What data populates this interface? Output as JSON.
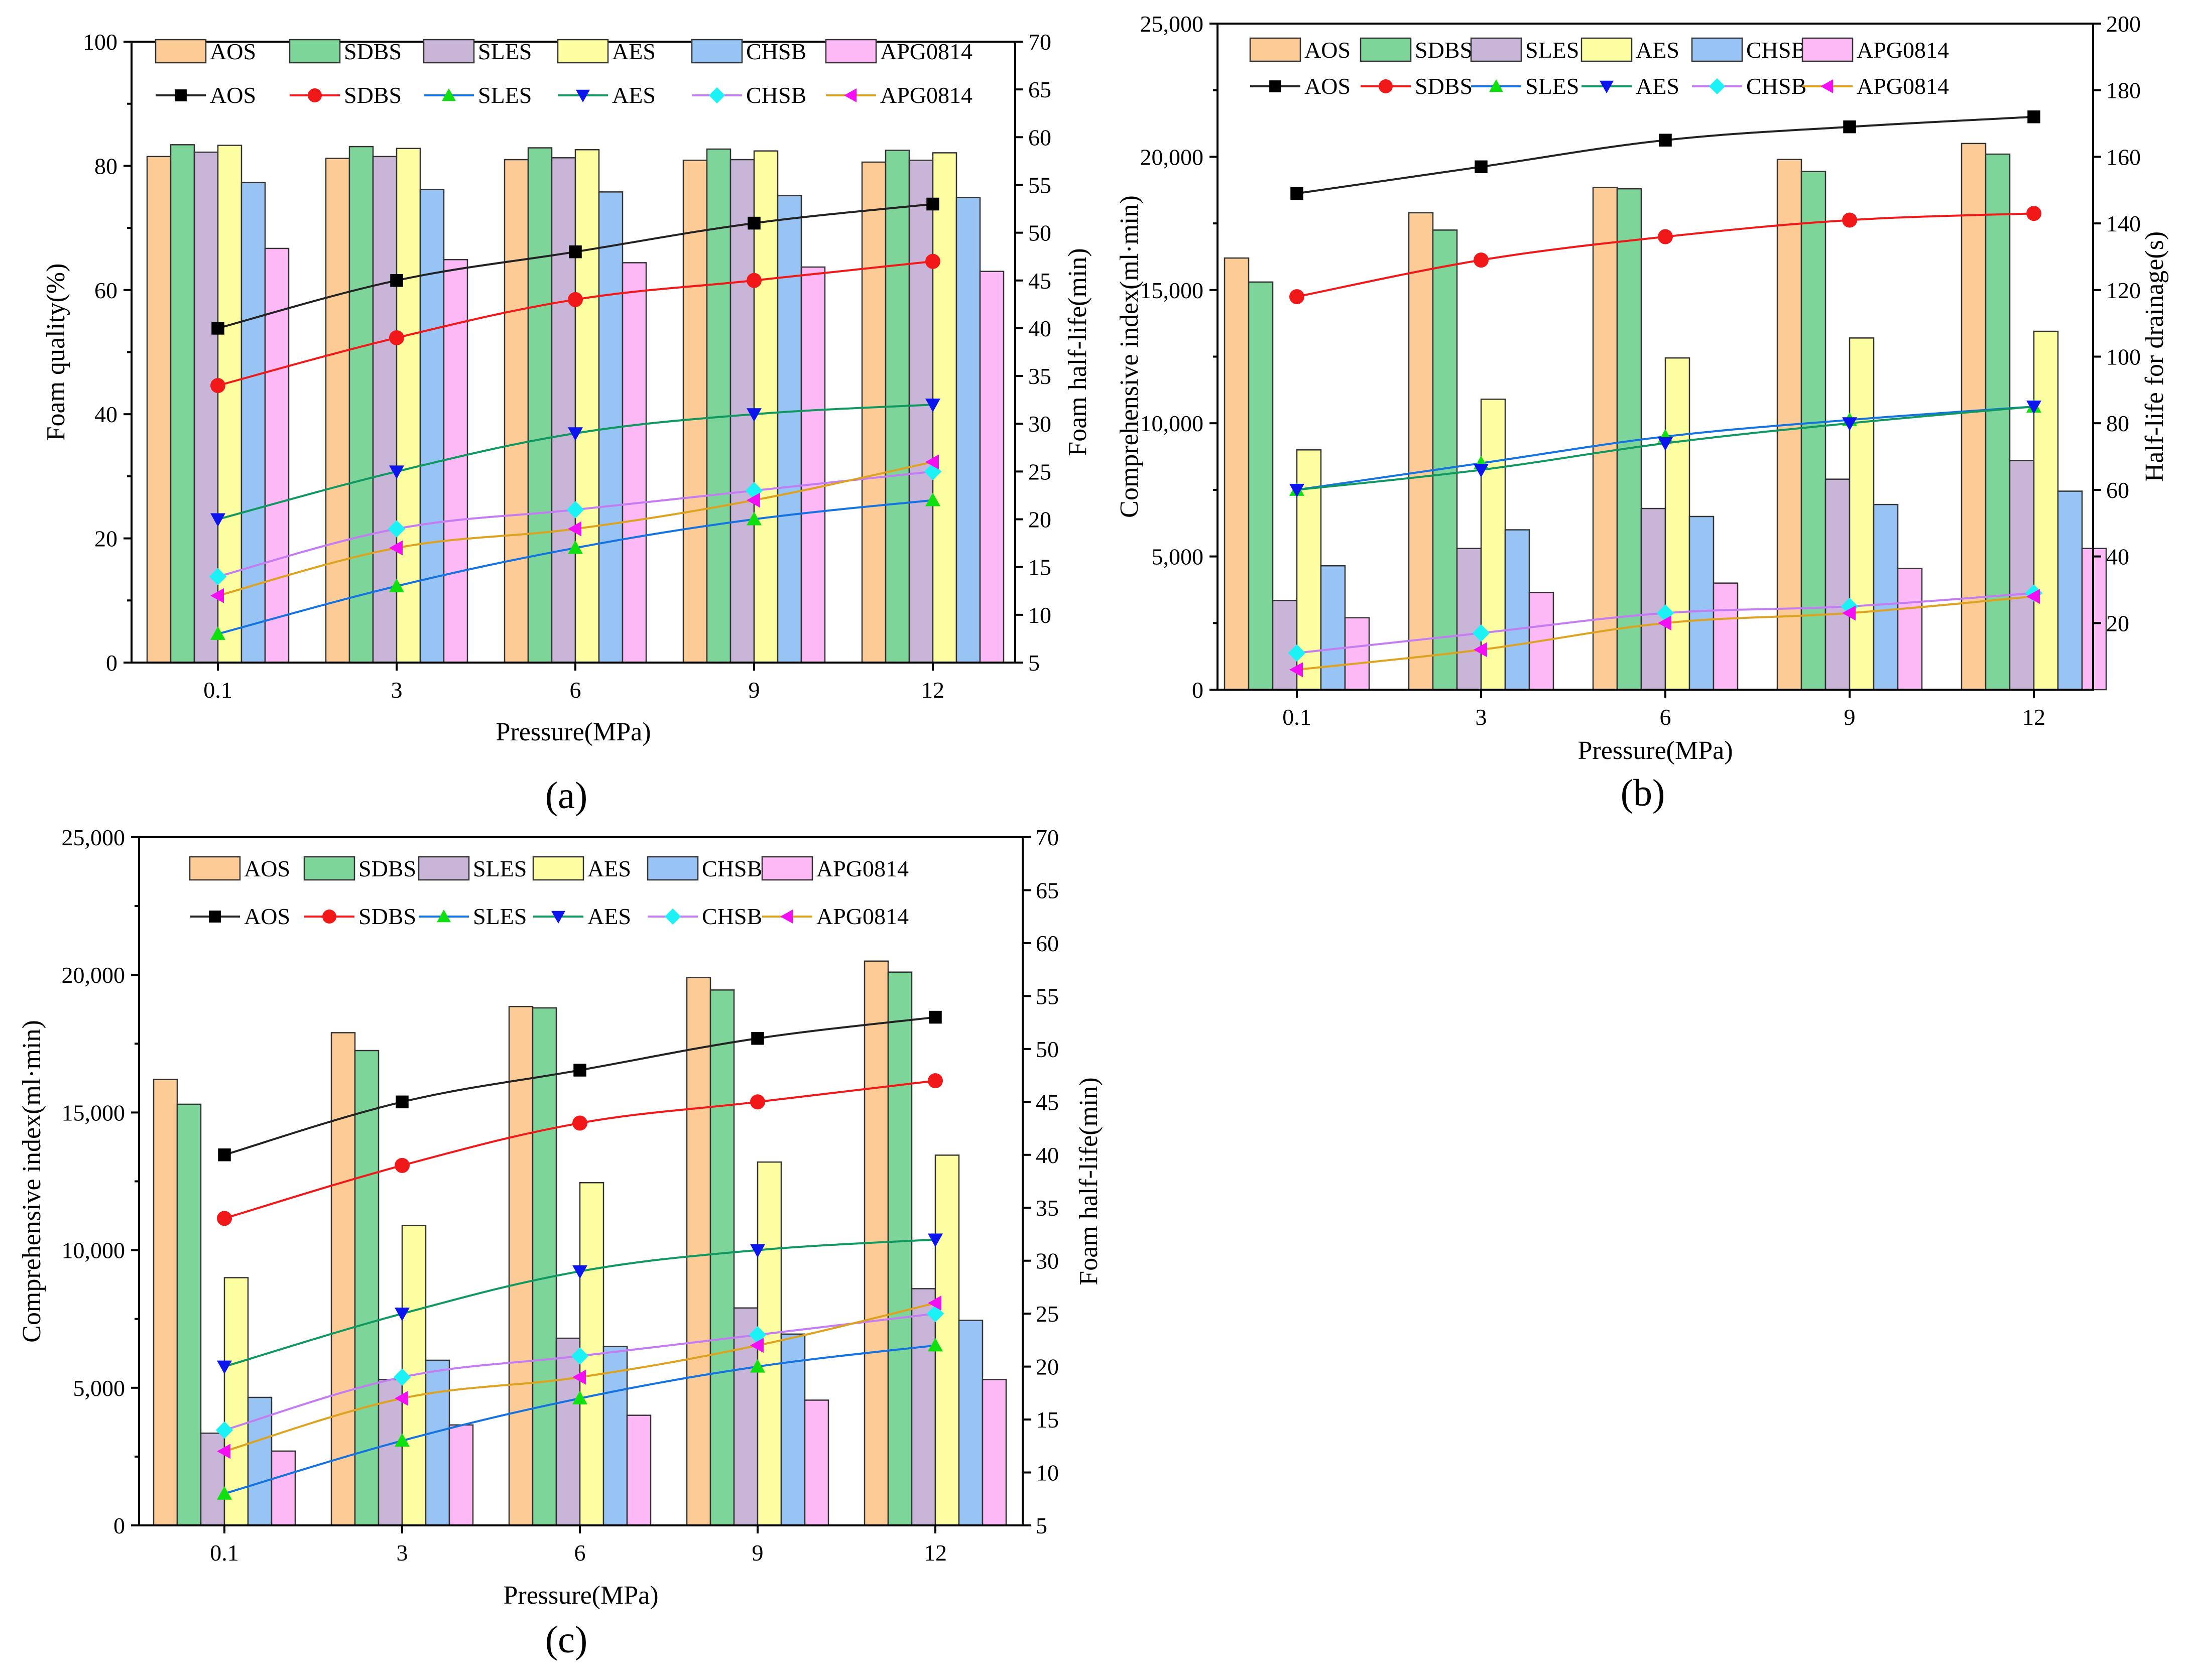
{
  "colors": {
    "bars": [
      "#FDCB96",
      "#7DD59A",
      "#C9B5D8",
      "#FDFEA1",
      "#97C4F4",
      "#FDB8F6"
    ],
    "lines": [
      "#222222",
      "#F01818",
      "#1473E0",
      "#109860",
      "#C37CF2",
      "#DDA21F"
    ],
    "markers": [
      "#000000",
      "#F01818",
      "#10E010",
      "#0C16EC",
      "#1CF2F6",
      "#F210F2"
    ]
  },
  "chart_data": [
    {
      "panel": "(a)",
      "type": "bar+line",
      "categories": [
        "0.1",
        "3",
        "6",
        "9",
        "12"
      ],
      "xlabel": "Pressure(MPa)",
      "ylabel_left": "Foam quality(%)",
      "ylabel_right": "Foam half-life(min)",
      "ylim_left": [
        0,
        100
      ],
      "ylim_right": [
        5,
        70
      ],
      "left_ticks": [
        "0",
        "20",
        "40",
        "60",
        "80",
        "100"
      ],
      "right_ticks": [
        "5",
        "10",
        "15",
        "20",
        "25",
        "30",
        "35",
        "40",
        "45",
        "50",
        "55",
        "60",
        "65",
        "70"
      ],
      "bar_series": [
        {
          "name": "AOS",
          "values": [
            81.5,
            81.2,
            81.0,
            80.9,
            80.6
          ]
        },
        {
          "name": "SDBS",
          "values": [
            83.4,
            83.1,
            82.9,
            82.7,
            82.5
          ]
        },
        {
          "name": "SLES",
          "values": [
            82.2,
            81.5,
            81.3,
            81.0,
            80.9
          ]
        },
        {
          "name": "AES",
          "values": [
            83.3,
            82.8,
            82.6,
            82.4,
            82.1
          ]
        },
        {
          "name": "CHSB",
          "values": [
            77.3,
            76.2,
            75.8,
            75.2,
            74.9
          ]
        },
        {
          "name": "APG0814",
          "values": [
            66.7,
            64.9,
            64.4,
            63.7,
            63.0
          ]
        }
      ],
      "line_series": [
        {
          "name": "AOS",
          "marker": "square",
          "values": [
            40,
            45,
            48,
            51,
            53
          ]
        },
        {
          "name": "SDBS",
          "marker": "circle",
          "values": [
            34,
            39,
            43,
            45,
            47
          ]
        },
        {
          "name": "SLES",
          "marker": "triangle-up",
          "values": [
            8,
            13,
            17,
            20,
            22
          ]
        },
        {
          "name": "AES",
          "marker": "triangle-down",
          "values": [
            20,
            25,
            29,
            31,
            32
          ]
        },
        {
          "name": "CHSB",
          "marker": "diamond",
          "values": [
            14,
            19,
            21,
            23,
            25
          ]
        },
        {
          "name": "APG0814",
          "marker": "triangle-left",
          "values": [
            12,
            17,
            19,
            22,
            26
          ]
        }
      ]
    },
    {
      "panel": "(b)",
      "type": "bar+line",
      "categories": [
        "0.1",
        "3",
        "6",
        "9",
        "12"
      ],
      "xlabel": "Pressure(MPa)",
      "ylabel_left": "Comprehensive index(ml·min)",
      "ylabel_right": "Half-life for drainage(s)",
      "ylim_left": [
        0,
        25000
      ],
      "ylim_right": [
        0,
        200
      ],
      "left_ticks": [
        "0",
        "5,000",
        "10,000",
        "15,000",
        "20,000",
        "25,000"
      ],
      "right_ticks": [
        "20",
        "40",
        "60",
        "80",
        "100",
        "120",
        "140",
        "160",
        "180",
        "200"
      ],
      "bar_series": [
        {
          "name": "AOS",
          "values": [
            16200,
            17900,
            18850,
            19900,
            20500
          ]
        },
        {
          "name": "SDBS",
          "values": [
            15300,
            17250,
            18800,
            19450,
            20100
          ]
        },
        {
          "name": "SLES",
          "values": [
            3350,
            5300,
            6800,
            7900,
            8600
          ]
        },
        {
          "name": "AES",
          "values": [
            9000,
            10900,
            12450,
            13200,
            13450
          ]
        },
        {
          "name": "CHSB",
          "values": [
            4650,
            6000,
            6500,
            6950,
            7450
          ]
        },
        {
          "name": "APG0814",
          "values": [
            2700,
            3650,
            4000,
            4550,
            5300
          ]
        }
      ],
      "line_series": [
        {
          "name": "AOS",
          "marker": "square",
          "values": [
            149,
            157,
            165,
            169,
            172
          ]
        },
        {
          "name": "SDBS",
          "marker": "circle",
          "values": [
            118,
            129,
            136,
            141,
            143
          ]
        },
        {
          "name": "SLES",
          "marker": "triangle-up",
          "values": [
            60,
            68,
            76,
            81,
            85
          ]
        },
        {
          "name": "AES",
          "marker": "triangle-down",
          "values": [
            60,
            66,
            74,
            80,
            85
          ]
        },
        {
          "name": "CHSB",
          "marker": "diamond",
          "values": [
            11,
            17,
            23,
            25,
            29
          ]
        },
        {
          "name": "APG0814",
          "marker": "triangle-left",
          "values": [
            6,
            12,
            20,
            23,
            28
          ]
        }
      ]
    },
    {
      "panel": "(c)",
      "type": "bar+line",
      "categories": [
        "0.1",
        "3",
        "6",
        "9",
        "12"
      ],
      "xlabel": "Pressure(MPa)",
      "ylabel_left": "Comprehensive index(ml·min)",
      "ylabel_right": "Foam half-life(min)",
      "ylim_left": [
        0,
        25000
      ],
      "ylim_right": [
        5,
        70
      ],
      "left_ticks": [
        "0",
        "5,000",
        "10,000",
        "15,000",
        "20,000",
        "25,000"
      ],
      "right_ticks": [
        "5",
        "10",
        "15",
        "20",
        "25",
        "30",
        "35",
        "40",
        "45",
        "50",
        "55",
        "60",
        "65",
        "70"
      ],
      "bar_series": [
        {
          "name": "AOS",
          "values": [
            16200,
            17900,
            18850,
            19900,
            20500
          ]
        },
        {
          "name": "SDBS",
          "values": [
            15300,
            17250,
            18800,
            19450,
            20100
          ]
        },
        {
          "name": "SLES",
          "values": [
            3350,
            5300,
            6800,
            7900,
            8600
          ]
        },
        {
          "name": "AES",
          "values": [
            9000,
            10900,
            12450,
            13200,
            13450
          ]
        },
        {
          "name": "CHSB",
          "values": [
            4650,
            6000,
            6500,
            6950,
            7450
          ]
        },
        {
          "name": "APG0814",
          "values": [
            2700,
            3650,
            4000,
            4550,
            5300
          ]
        }
      ],
      "line_series": [
        {
          "name": "AOS",
          "marker": "square",
          "values": [
            40,
            45,
            48,
            51,
            53
          ]
        },
        {
          "name": "SDBS",
          "marker": "circle",
          "values": [
            34,
            39,
            43,
            45,
            47
          ]
        },
        {
          "name": "SLES",
          "marker": "triangle-up",
          "values": [
            8,
            13,
            17,
            20,
            22
          ]
        },
        {
          "name": "AES",
          "marker": "triangle-down",
          "values": [
            20,
            25,
            29,
            31,
            32
          ]
        },
        {
          "name": "CHSB",
          "marker": "diamond",
          "values": [
            14,
            19,
            21,
            23,
            25
          ]
        },
        {
          "name": "APG0814",
          "marker": "triangle-left",
          "values": [
            12,
            17,
            19,
            22,
            26
          ]
        }
      ]
    }
  ]
}
